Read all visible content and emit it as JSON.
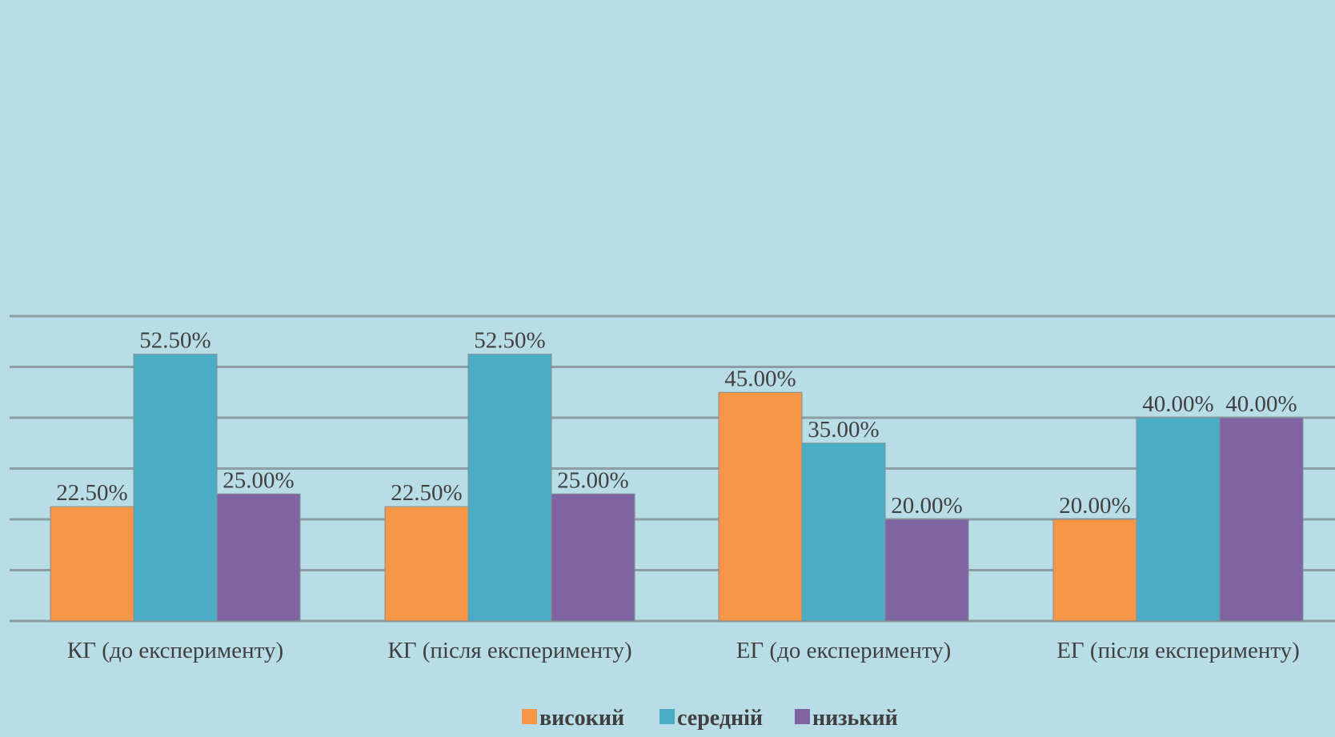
{
  "chart_data": {
    "type": "bar",
    "categories": [
      "КГ (до експерименту)",
      "КГ (після експерименту)",
      "ЕГ (до експерименту)",
      "ЕГ (після експерименту)"
    ],
    "series": [
      {
        "name": "високий",
        "values": [
          22.5,
          22.5,
          45.0,
          20.0
        ],
        "labels": [
          "22.50%",
          "22.50%",
          "45.00%",
          "20.00%"
        ],
        "color": "#f79646"
      },
      {
        "name": "середній",
        "values": [
          52.5,
          52.5,
          35.0,
          40.0
        ],
        "labels": [
          "52.50%",
          "52.50%",
          "35.00%",
          "40.00%"
        ],
        "color": "#4bacc6"
      },
      {
        "name": "низький",
        "values": [
          25.0,
          25.0,
          20.0,
          40.0
        ],
        "labels": [
          "25.00%",
          "25.00%",
          "20.00%",
          "40.00%"
        ],
        "color": "#8064a2"
      }
    ],
    "ylim": [
      0,
      60
    ],
    "grid": true,
    "legend_position": "bottom",
    "colors": {
      "background": "#b8dde7",
      "gridline": "#8c9ea3",
      "text": "#404040"
    }
  }
}
